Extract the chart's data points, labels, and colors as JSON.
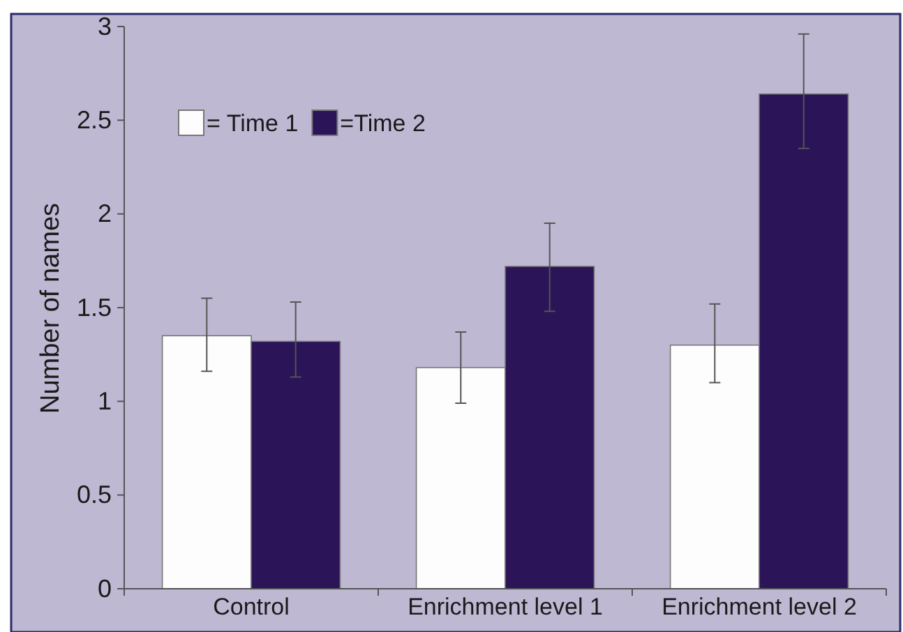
{
  "chart_data": {
    "type": "bar",
    "ylabel": "Number of names",
    "categories": [
      "Control",
      "Enrichment level 1",
      "Enrichment level 2"
    ],
    "series": [
      {
        "name": "= Time 1",
        "color": "#fdfdfd",
        "values": [
          1.35,
          1.18,
          1.3
        ],
        "errors": [
          [
            1.16,
            1.55
          ],
          [
            0.99,
            1.37
          ],
          [
            1.1,
            1.52
          ]
        ]
      },
      {
        "name": "=Time 2",
        "color": "#2b1458",
        "values": [
          1.32,
          1.72,
          2.64
        ],
        "errors": [
          [
            1.13,
            1.53
          ],
          [
            1.48,
            1.95
          ],
          [
            2.35,
            2.96
          ]
        ]
      }
    ],
    "ylim": [
      0,
      3
    ],
    "yticks": [
      0,
      0.5,
      1,
      1.5,
      2,
      2.5,
      3
    ],
    "grid": false,
    "legend": "top left"
  }
}
